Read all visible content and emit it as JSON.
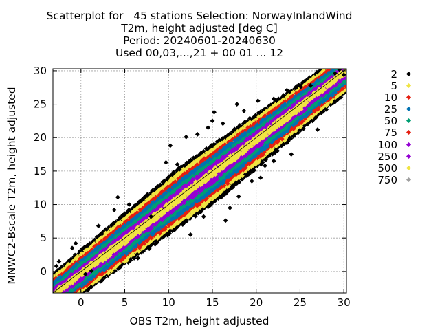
{
  "titles": {
    "line1": "Scatterplot for   45 stations Selection: NorwayInlandWind",
    "line2": "T2m, height adjusted [deg C]",
    "line3": "Period: 20240601-20240630",
    "line4": "Used 00,03,...,21 + 00 01 ... 12"
  },
  "chart_data": {
    "type": "scatter",
    "title": "Scatterplot for   45 stations Selection: NorwayInlandWind",
    "xlabel": "OBS T2m, height adjusted",
    "ylabel": "MNWC2-Bscale T2m, height adjusted",
    "xlim": [
      -3.2,
      30.3
    ],
    "ylim": [
      -3.2,
      30.3
    ],
    "x_ticks": [
      "0",
      "5",
      "10",
      "15",
      "20",
      "25",
      "30"
    ],
    "y_ticks": [
      "0",
      "5",
      "10",
      "15",
      "20",
      "25",
      "30"
    ],
    "grid": true,
    "diagonal_line": true,
    "legend_placement": "right",
    "legend": [
      {
        "label": "2",
        "color": "#000000"
      },
      {
        "label": "5",
        "color": "#f0e442"
      },
      {
        "label": "10",
        "color": "#e51e10"
      },
      {
        "label": "25",
        "color": "#0072b2"
      },
      {
        "label": "50",
        "color": "#009e73"
      },
      {
        "label": "75",
        "color": "#e51e10"
      },
      {
        "label": "100",
        "color": "#9400d3"
      },
      {
        "label": "250",
        "color": "#9400d3"
      },
      {
        "label": "500",
        "color": "#f0e442"
      },
      {
        "label": "750",
        "color": "#a0a0a0"
      }
    ],
    "density_bands": [
      {
        "count_class": "2",
        "color": "#000000",
        "half_width": 4.6
      },
      {
        "count_class": "5",
        "color": "#f0e442",
        "half_width": 3.9
      },
      {
        "count_class": "10",
        "color": "#e51e10",
        "half_width": 3.2
      },
      {
        "count_class": "25",
        "color": "#0072b2",
        "half_width": 2.6
      },
      {
        "count_class": "50",
        "color": "#009e73",
        "half_width": 1.9
      },
      {
        "count_class": "100",
        "color": "#9400d3",
        "half_width": 1.3
      },
      {
        "count_class": "500",
        "color": "#f0e442",
        "half_width": 0.55
      }
    ],
    "outliers": [
      [
        -2.8,
        0.8
      ],
      [
        -2.5,
        1.5
      ],
      [
        -1.0,
        3.5
      ],
      [
        -0.6,
        4.2
      ],
      [
        0.5,
        -0.4
      ],
      [
        1.2,
        0.1
      ],
      [
        2.0,
        6.8
      ],
      [
        3.8,
        9.2
      ],
      [
        6.5,
        2.0
      ],
      [
        7.8,
        3.4
      ],
      [
        9.7,
        16.3
      ],
      [
        10.2,
        18.8
      ],
      [
        11.0,
        16.0
      ],
      [
        12.0,
        20.1
      ],
      [
        13.3,
        20.5
      ],
      [
        14.5,
        21.5
      ],
      [
        15.0,
        22.5
      ],
      [
        15.2,
        23.8
      ],
      [
        16.2,
        22.1
      ],
      [
        17.8,
        25.0
      ],
      [
        18.6,
        24.0
      ],
      [
        20.2,
        25.5
      ],
      [
        22.0,
        25.8
      ],
      [
        23.5,
        27.1
      ],
      [
        24.5,
        27.4
      ],
      [
        25.1,
        27.6
      ],
      [
        26.2,
        27.8
      ],
      [
        29.0,
        29.6
      ],
      [
        29.5,
        30.2
      ],
      [
        30.0,
        29.4
      ],
      [
        16.5,
        7.6
      ],
      [
        17.0,
        9.5
      ],
      [
        18.0,
        11.2
      ],
      [
        19.5,
        13.5
      ],
      [
        20.5,
        14.0
      ],
      [
        21.0,
        15.8
      ],
      [
        22.0,
        16.5
      ],
      [
        23.5,
        19.2
      ],
      [
        24.0,
        17.5
      ],
      [
        26.8,
        23.0
      ],
      [
        27.0,
        21.2
      ],
      [
        14.0,
        8.2
      ],
      [
        12.5,
        5.5
      ],
      [
        8.0,
        8.2
      ],
      [
        5.5,
        10.0
      ],
      [
        4.2,
        11.1
      ]
    ]
  }
}
